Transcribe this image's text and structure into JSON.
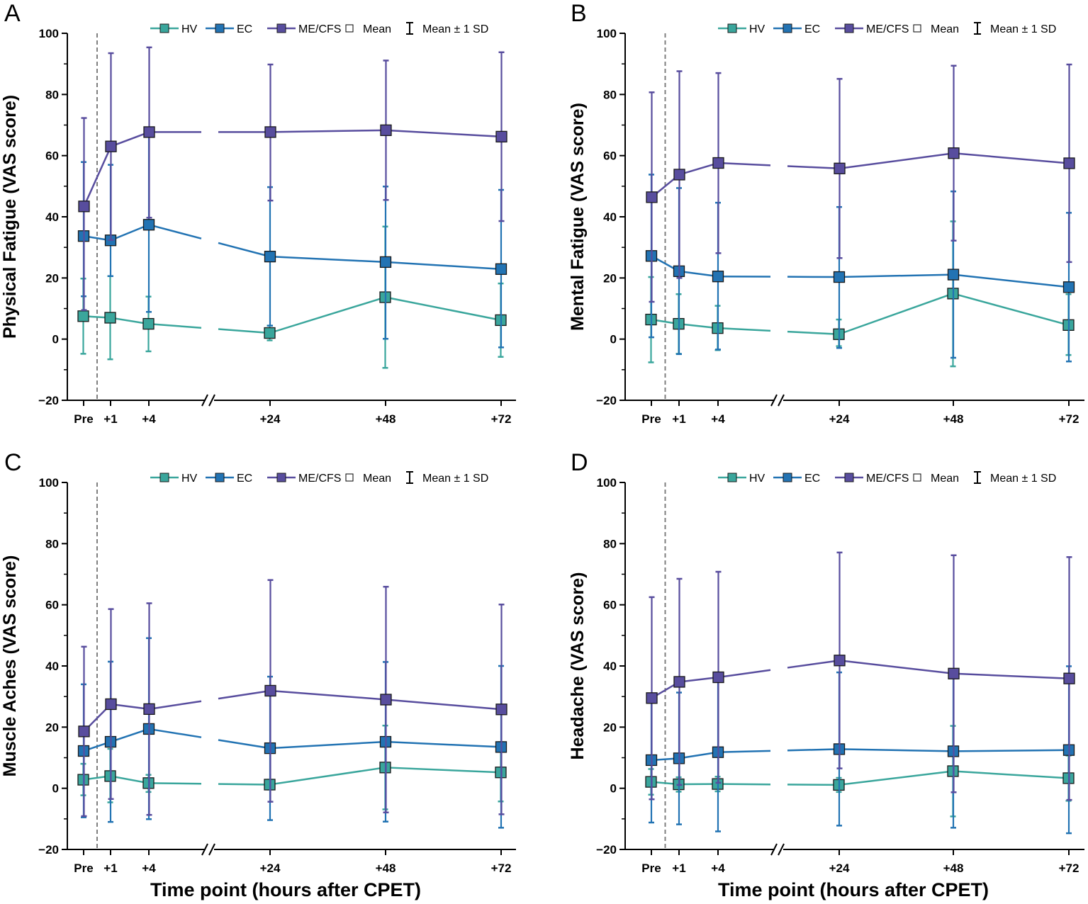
{
  "figure": {
    "xlabel": "Time point (hours after CPET)",
    "legend_labels": [
      "HV",
      "EC",
      "ME/CFS",
      "Mean",
      "Mean ± 1 SD"
    ],
    "colors": {
      "HV": "#3aa69c",
      "EC": "#2273b3",
      "ME/CFS": "#584d9e",
      "axis": "#000000",
      "divider": "#7f7f7f"
    }
  },
  "chart_data": [
    {
      "panel": "A",
      "type": "line",
      "ylabel": "Physical Fatigue (VAS score)",
      "categories": [
        "Pre",
        "+1",
        "+4",
        "+24",
        "+48",
        "+72"
      ],
      "y_ticks": [
        "−20",
        "0",
        "20",
        "40",
        "60",
        "80",
        "100"
      ],
      "ylim": [
        -20,
        100
      ],
      "axis_break": "between +4 and +24",
      "series": [
        {
          "name": "HV",
          "values": [
            7.5,
            7,
            5,
            2,
            13.7,
            6.2
          ],
          "upper": [
            19.8,
            20.6,
            13.9,
            4.4,
            36.8,
            18.2
          ],
          "lower": [
            -4.8,
            -6.6,
            -4,
            -0.4,
            -9.4,
            -5.8
          ]
        },
        {
          "name": "EC",
          "values": [
            33.7,
            32.3,
            37.4,
            27,
            25.2,
            22.9
          ],
          "upper": [
            57.9,
            57,
            66.3,
            49.7,
            49.9,
            48.8
          ],
          "lower": [
            14,
            20.6,
            8.9,
            4.4,
            0.1,
            -2.7
          ]
        },
        {
          "name": "ME/CFS",
          "values": [
            43.4,
            63,
            67.7,
            67.7,
            68.3,
            66.2
          ],
          "upper": [
            72.3,
            93.5,
            95.4,
            89.8,
            91.1,
            93.8
          ],
          "lower": [
            9.5,
            32.4,
            39.7,
            45.3,
            45.5,
            38.6
          ]
        }
      ]
    },
    {
      "panel": "B",
      "type": "line",
      "ylabel": "Mental Fatigue (VAS score)",
      "categories": [
        "Pre",
        "+1",
        "+4",
        "+24",
        "+48",
        "+72"
      ],
      "y_ticks": [
        "−20",
        "0",
        "20",
        "40",
        "60",
        "80",
        "100"
      ],
      "ylim": [
        -20,
        100
      ],
      "axis_break": "between +4 and +24",
      "series": [
        {
          "name": "HV",
          "values": [
            6.4,
            5,
            3.6,
            1.6,
            14.9,
            4.6
          ],
          "upper": [
            20.3,
            14.7,
            10.9,
            6.4,
            38.5,
            14.7
          ],
          "lower": [
            -7.6,
            -4.8,
            -3.6,
            -2.3,
            -8.9,
            -5.2
          ]
        },
        {
          "name": "EC",
          "values": [
            27.2,
            22.2,
            20.5,
            20.3,
            21.1,
            17
          ],
          "upper": [
            53.8,
            49.4,
            44.6,
            43.2,
            48.3,
            41.3
          ],
          "lower": [
            0.6,
            -4.9,
            -3.4,
            -2.9,
            -6.1,
            -7.3
          ]
        },
        {
          "name": "ME/CFS",
          "values": [
            46.4,
            53.8,
            57.6,
            55.8,
            60.8,
            57.5
          ],
          "upper": [
            80.7,
            87.6,
            87,
            85.1,
            89.4,
            89.8
          ],
          "lower": [
            12.2,
            20,
            28.1,
            26.5,
            32.2,
            25.2
          ]
        }
      ]
    },
    {
      "panel": "C",
      "type": "line",
      "ylabel": "Muscle Aches (VAS score)",
      "categories": [
        "Pre",
        "+1",
        "+4",
        "+24",
        "+48",
        "+72"
      ],
      "y_ticks": [
        "−20",
        "0",
        "20",
        "40",
        "60",
        "80",
        "100"
      ],
      "ylim": [
        -20,
        100
      ],
      "axis_break": "between +4 and +24",
      "series": [
        {
          "name": "HV",
          "values": [
            2.8,
            4,
            1.7,
            1.2,
            6.8,
            5.2
          ],
          "upper": [
            8,
            12.9,
            4.4,
            2.8,
            20.5,
            15.1
          ],
          "lower": [
            -2.3,
            -4.6,
            -1.2,
            -0.4,
            -6.9,
            -4.3
          ]
        },
        {
          "name": "EC",
          "values": [
            12.2,
            15.2,
            19.4,
            13.1,
            15.2,
            13.5
          ],
          "upper": [
            34,
            41.4,
            49.1,
            36.5,
            41.3,
            40
          ],
          "lower": [
            -9.5,
            -11,
            -10.1,
            -10.4,
            -10.9,
            -12.9
          ]
        },
        {
          "name": "ME/CFS",
          "values": [
            18.6,
            27.5,
            25.9,
            31.9,
            29,
            25.8
          ],
          "upper": [
            46.3,
            58.6,
            60.5,
            68.1,
            65.9,
            60.1
          ],
          "lower": [
            -9.1,
            -3.5,
            -8.7,
            -4.4,
            -7.9,
            -8.5
          ]
        }
      ]
    },
    {
      "panel": "D",
      "type": "line",
      "ylabel": "Headache (VAS score)",
      "categories": [
        "Pre",
        "+1",
        "+4",
        "+24",
        "+48",
        "+72"
      ],
      "y_ticks": [
        "−20",
        "0",
        "20",
        "40",
        "60",
        "80",
        "100"
      ],
      "ylim": [
        -20,
        100
      ],
      "axis_break": "between +4 and +24",
      "series": [
        {
          "name": "HV",
          "values": [
            2.1,
            1.3,
            1.4,
            1.1,
            5.6,
            3.3
          ],
          "upper": [
            6.3,
            3.6,
            3.8,
            3.4,
            20.4,
            10.7
          ],
          "lower": [
            -2.1,
            -1.1,
            -1,
            -1.2,
            -9.2,
            -4.1
          ]
        },
        {
          "name": "EC",
          "values": [
            9.2,
            9.8,
            11.8,
            12.8,
            12.1,
            12.5
          ],
          "upper": [
            29.6,
            31.3,
            37.8,
            37.9,
            37.2,
            39.9
          ],
          "lower": [
            -11.2,
            -11.8,
            -14.1,
            -12.2,
            -12.9,
            -14.7
          ]
        },
        {
          "name": "ME/CFS",
          "values": [
            29.5,
            34.8,
            36.3,
            41.8,
            37.5,
            35.9
          ],
          "upper": [
            62.5,
            68.5,
            70.8,
            77.1,
            76.2,
            75.6
          ],
          "lower": [
            -3.6,
            1.1,
            1.8,
            6.5,
            -1.3,
            -3.8
          ]
        }
      ]
    }
  ]
}
